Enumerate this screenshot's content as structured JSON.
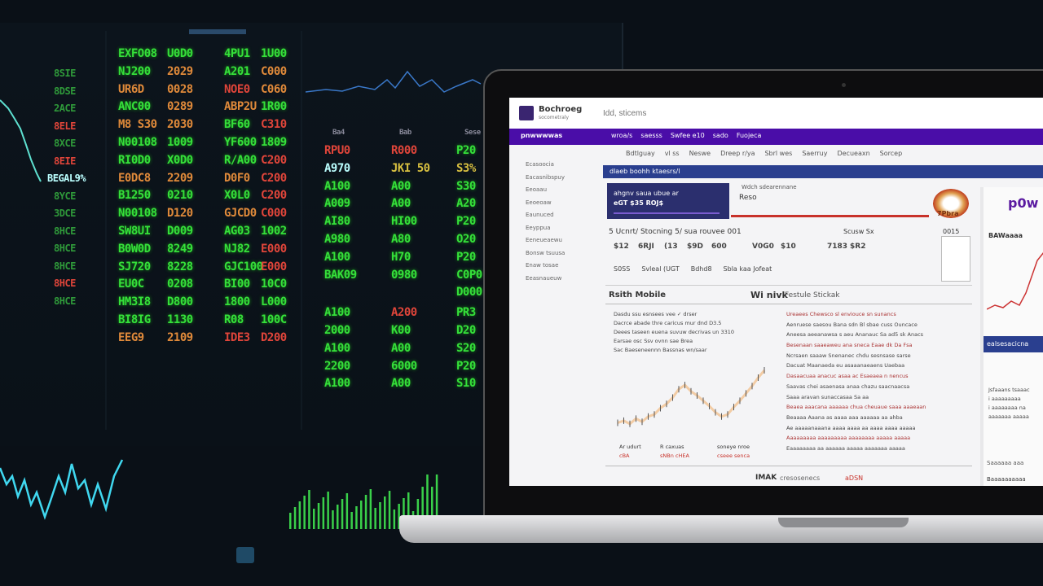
{
  "monitor": {
    "left_column": [
      [
        "8SIE",
        "dg"
      ],
      [
        "8DSE",
        "dg"
      ],
      [
        "2ACE",
        "dg"
      ],
      [
        "8ELE",
        "r"
      ],
      [
        "8XCE",
        "dg"
      ],
      [
        "8EIE",
        "r"
      ],
      [
        "BEGAL9%",
        "c"
      ],
      [
        "8YCE",
        "dg"
      ],
      [
        "3DCE",
        "dg"
      ],
      [
        "8HCE",
        "dg"
      ],
      [
        "8HCE",
        "dg"
      ],
      [
        "8HCE",
        "dg"
      ],
      [
        "8HCE",
        "r"
      ],
      [
        "8HCE",
        "dg"
      ]
    ],
    "grid": [
      [
        [
          "EXFO08",
          "g"
        ],
        [
          "U0D0",
          "g"
        ],
        [
          "4PU1",
          "g"
        ],
        [
          "1U00",
          "g"
        ]
      ],
      [
        [
          "NJ200",
          "g"
        ],
        [
          "2029",
          "o"
        ],
        [
          "A201",
          "g"
        ],
        [
          "C000",
          "o"
        ]
      ],
      [
        [
          "UR6D",
          "o"
        ],
        [
          "0028",
          "o"
        ],
        [
          "NOE0",
          "r"
        ],
        [
          "C060",
          "o"
        ]
      ],
      [
        [
          "ANC00",
          "g"
        ],
        [
          "0289",
          "o"
        ],
        [
          "ABP2U",
          "o"
        ],
        [
          "1R00",
          "g"
        ]
      ],
      [
        [
          "M8 S30",
          "o"
        ],
        [
          "2030",
          "o"
        ],
        [
          "BF60",
          "g"
        ],
        [
          "C310",
          "r"
        ]
      ],
      [
        [
          "N00108",
          "g"
        ],
        [
          "1009",
          "g"
        ],
        [
          "YF600",
          "g"
        ],
        [
          "1809",
          "g"
        ]
      ],
      [
        [
          "RI0D0",
          "g"
        ],
        [
          "X0D0",
          "g"
        ],
        [
          "R/A00",
          "g"
        ],
        [
          "C200",
          "r"
        ]
      ],
      [
        [
          "E0DC8",
          "o"
        ],
        [
          "2209",
          "o"
        ],
        [
          "D0F0",
          "o"
        ],
        [
          "C200",
          "r"
        ]
      ],
      [
        [
          "B1250",
          "g"
        ],
        [
          "0210",
          "g"
        ],
        [
          "X0L0",
          "g"
        ],
        [
          "C200",
          "r"
        ]
      ],
      [
        [
          "N00108",
          "g"
        ],
        [
          "D120",
          "o"
        ],
        [
          "GJCD0",
          "o"
        ],
        [
          "C000",
          "r"
        ]
      ],
      [
        [
          "SW8UI",
          "g"
        ],
        [
          "D009",
          "g"
        ],
        [
          "AG03",
          "g"
        ],
        [
          "1002",
          "g"
        ]
      ],
      [
        [
          "B0W0D",
          "g"
        ],
        [
          "8249",
          "g"
        ],
        [
          "NJ82",
          "g"
        ],
        [
          "E000",
          "r"
        ]
      ],
      [
        [
          "SJ720",
          "g"
        ],
        [
          "8228",
          "g"
        ],
        [
          "GJC100",
          "g"
        ],
        [
          "E000",
          "r"
        ]
      ],
      [
        [
          "EU0C",
          "g"
        ],
        [
          "0208",
          "g"
        ],
        [
          "BI00",
          "g"
        ],
        [
          "10C0",
          "g"
        ]
      ],
      [
        [
          "HM3I8",
          "g"
        ],
        [
          "D800",
          "g"
        ],
        [
          "1800",
          "g"
        ],
        [
          "L000",
          "g"
        ]
      ],
      [
        [
          "BI8IG",
          "g"
        ],
        [
          "1130",
          "g"
        ],
        [
          "R08",
          "g"
        ],
        [
          "100C",
          "g"
        ]
      ],
      [
        [
          "EEG9",
          "o"
        ],
        [
          "2109",
          "o"
        ],
        [
          "IDE3",
          "r"
        ],
        [
          "D200",
          "r"
        ]
      ]
    ],
    "right_headers": [
      "Ba4",
      "Bab",
      "Sese"
    ],
    "right_grid": [
      [
        [
          "RPU0",
          "r"
        ],
        [
          "R000",
          "r"
        ],
        [
          "P20",
          "g"
        ]
      ],
      [
        [
          "A970",
          "c"
        ],
        [
          "JKI 50",
          "y"
        ],
        [
          "S3%",
          "y"
        ]
      ],
      [
        [
          "A100",
          "g"
        ],
        [
          "A00",
          "g"
        ],
        [
          "S30",
          "g"
        ]
      ],
      [
        [
          "A009",
          "g"
        ],
        [
          "A00",
          "g"
        ],
        [
          "A20",
          "g"
        ]
      ],
      [
        [
          "AI80",
          "g"
        ],
        [
          "HI00",
          "g"
        ],
        [
          "P20",
          "g"
        ]
      ],
      [
        [
          "A980",
          "g"
        ],
        [
          "A80",
          "g"
        ],
        [
          "O20",
          "g"
        ]
      ],
      [
        [
          "A100",
          "g"
        ],
        [
          "H70",
          "g"
        ],
        [
          "P20",
          "g"
        ]
      ],
      [
        [
          "BAK09",
          "g"
        ],
        [
          "0980",
          "g"
        ],
        [
          "C0P0",
          "g"
        ]
      ],
      [
        [
          "",
          "g"
        ],
        [
          "",
          "g"
        ],
        [
          "D000",
          "g"
        ]
      ],
      [
        [
          "A100",
          "g"
        ],
        [
          "A200",
          "r"
        ],
        [
          "PR3",
          "g"
        ]
      ],
      [
        [
          "2000",
          "g"
        ],
        [
          "K00",
          "g"
        ],
        [
          "D20",
          "g"
        ]
      ],
      [
        [
          "A100",
          "g"
        ],
        [
          "A00",
          "g"
        ],
        [
          "S20",
          "g"
        ]
      ],
      [
        [
          "2200",
          "g"
        ],
        [
          "6000",
          "g"
        ],
        [
          "P20",
          "g"
        ]
      ],
      [
        [
          "A100",
          "g"
        ],
        [
          "A00",
          "g"
        ],
        [
          "S10",
          "g"
        ]
      ]
    ]
  },
  "screen": {
    "brand": "Bochroeg",
    "brand_sub": "socometraly",
    "search_placeholder": "Idd, sticems",
    "nav_label": "pnwwwwas",
    "nav_items": [
      "wroa/s",
      "saesss",
      "Swfee e10",
      "sado",
      "Fuojeca"
    ],
    "subnav_items": [
      "Bdtlguay",
      "vl ss",
      "Neswe",
      "Dreep r/ya",
      "Sbrl wes",
      "Saerruy",
      "Decueaxn",
      "Sorcep"
    ],
    "sidebar_items": [
      "Ecasoocia",
      "Eacasnibspuy",
      "Eeoaau",
      "Eeoeoaw",
      "Eaunuced",
      "Eeyppua",
      "Eeneueaewu",
      "Bonsw tsuusa",
      "Enaw tosae",
      "Eeasnaueuw"
    ],
    "banner": "dlaeb boohh ktaesrs/l",
    "card_lines": [
      "ahgnv saua  ubue ar",
      "eGT  $35  ROJ$"
    ],
    "reso_caption": "Wdch sdearennane",
    "reso": "Reso",
    "logo_text": "7Pbra",
    "stock_header": [
      "5 Ucnrt/ Stocning  5/  sua rouvee  001",
      "Scusw  Sx",
      "0015"
    ],
    "stock_values": [
      "$12",
      "6RJI",
      "(13",
      "$9D",
      "600",
      "V0G0",
      "$10",
      "7183",
      "$R2"
    ],
    "stock_row3": [
      "S0SS",
      "Svleal (UGT",
      "Bdhd8",
      "Sbla  kaa  Jofeat"
    ],
    "section_left": "Rsith Mobile",
    "section_right_bold": "Wi nivk",
    "section_right": "Festule Stickak",
    "left_text": [
      "Dasdu ssu  esnsees vee  ✓ drser",
      "Dacrce abade  thre caricus mur dnd   D3.5",
      "Deees  taseen euena  suvuw  decrivas  un 3310",
      "Earsae osc  Ssv ovnn sae Brea",
      "Sac  Baeseneennn Bassnas wn/saar"
    ],
    "chart_labels": [
      "Ar udurt",
      "R caxuas",
      "soneye nroe",
      "cBA",
      "sNBn  cHEA",
      "cseee  senca"
    ],
    "chart_values": [
      12,
      14,
      11,
      16,
      13,
      18,
      20,
      26,
      30,
      36,
      44,
      48,
      42,
      38,
      33,
      28,
      22,
      18,
      20,
      27,
      33,
      40,
      47,
      55,
      62
    ],
    "right_text": [
      "Ureaees  Chewsco sl enviouce sn sunancs",
      "Aenruese saesou Bana sdn Bl sbae cuss Ouncace",
      "Aneesa aeeanawsa s aeu Ananauc Sa ad5 sk Anacs",
      "Besenaan saaeaweu ana sneca Eaae dk Da Fsa",
      "Ncrsaen saaaw Snenanec chdu sesnsase sarse",
      "Dacuat Maanaeda eu asaaanaeaens Uaebaa",
      "Dasaacuaa anacuc asaa ac Esaeaea n nencus",
      "Saavas  chei asaenasa  anaa  chazu saacnaacsa",
      "Saaa aravan  sunaccasaa  Sa aa",
      "Beaea aaacana aaaaaa chua cheuaue saaa aaaeaan",
      "Beaaaa  Aaana as aaaa aaa  aaaaaa aa  ahba",
      "Ae aaaaanaaana aaaa aaaa aa aaaa  aaaa  aaaaa",
      "Aaaaaaaaa aaaaaaaaa aaaaaaaa aaaaa aaaaa",
      "Eaaaaaaaa  aa aaaaaa aaaaa aaaaaaa aaaaa"
    ],
    "footer_bold": "IMAK",
    "footer": "cresosenecs",
    "footer_red": "aDSN",
    "rp_title": "p0w",
    "rp_head": "BAWaaaa",
    "rp_banner": "ealsesacicna",
    "rp_text": [
      "Jsfaaans  tsaaac",
      "i aaaaaaaaa",
      "i aaaaaaaa na",
      "aaaaaaa aaaaa"
    ],
    "rp_foot": [
      "Saaaaaa aaa",
      "Baaaaaaaaaa"
    ]
  },
  "colors": {
    "nav_purple": "#4a0da8",
    "banner_blue": "#2a3f8f",
    "card_navy": "#2b2f6e",
    "accent_red": "#c8322a",
    "ticker_green": "#35e03a",
    "ticker_red": "#e0453a",
    "ticker_orange": "#e08a3a"
  }
}
